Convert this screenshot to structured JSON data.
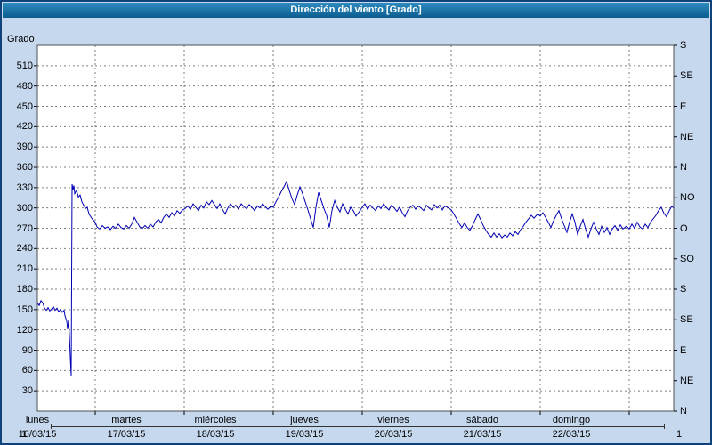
{
  "title": "Dirección del viento [Grado]",
  "y_axis": {
    "unit": "Grado",
    "min": 0,
    "max": 540,
    "step": 30,
    "first_label": 30,
    "last_label": 510
  },
  "right_axis": {
    "labels": [
      "N",
      "NE",
      "E",
      "SE",
      "S",
      "SO",
      "O",
      "NO",
      "N",
      "NE",
      "E",
      "SE",
      "S"
    ],
    "degrees": [
      0,
      45,
      90,
      135,
      180,
      225,
      270,
      315,
      360,
      405,
      450,
      495,
      540
    ]
  },
  "x_axis": {
    "days": [
      {
        "name": "lunes",
        "date": "16/03/15"
      },
      {
        "name": "martes",
        "date": "17/03/15"
      },
      {
        "name": "miércoles",
        "date": "18/03/15"
      },
      {
        "name": "jueves",
        "date": "19/03/15"
      },
      {
        "name": "viernes",
        "date": "20/03/15"
      },
      {
        "name": "sábado",
        "date": "21/03/15"
      },
      {
        "name": "domingo",
        "date": "22/03/15"
      }
    ]
  },
  "footer": {
    "left_page": "1",
    "right_page": "1"
  },
  "colors": {
    "line": "#0000b2",
    "grid": "#7d7d7d",
    "plot_border": "#505050",
    "frame_bg": "#c5d8ee",
    "frame_border": "#10427c",
    "header_from": "#2f8cc0",
    "header_to": "#0c5c8f"
  },
  "chart_data": {
    "type": "line",
    "title": "Dirección del viento [Grado]",
    "ylabel": "Grado",
    "ylim": [
      0,
      540
    ],
    "y_step": 30,
    "grid": "dashed",
    "legend": "none",
    "x_unit": "days since lunes 16/03/15 00:00",
    "x_domain": [
      0.35,
      7.5
    ],
    "day_gridlines": [
      1,
      2,
      3,
      4,
      5,
      6,
      7
    ],
    "series": [
      {
        "name": "Dirección del viento",
        "color": "#0000b2",
        "points": [
          [
            0.35,
            160
          ],
          [
            0.37,
            156
          ],
          [
            0.39,
            163
          ],
          [
            0.41,
            160
          ],
          [
            0.43,
            152
          ],
          [
            0.45,
            149
          ],
          [
            0.47,
            153
          ],
          [
            0.49,
            148
          ],
          [
            0.51,
            151
          ],
          [
            0.53,
            154
          ],
          [
            0.55,
            149
          ],
          [
            0.57,
            152
          ],
          [
            0.59,
            147
          ],
          [
            0.61,
            150
          ],
          [
            0.63,
            146
          ],
          [
            0.65,
            149
          ],
          [
            0.66,
            141
          ],
          [
            0.68,
            133
          ],
          [
            0.69,
            121
          ],
          [
            0.7,
            134
          ],
          [
            0.71,
            112
          ],
          [
            0.72,
            80
          ],
          [
            0.73,
            52
          ],
          [
            0.74,
            335
          ],
          [
            0.75,
            327
          ],
          [
            0.76,
            333
          ],
          [
            0.77,
            321
          ],
          [
            0.79,
            326
          ],
          [
            0.81,
            316
          ],
          [
            0.83,
            319
          ],
          [
            0.85,
            309
          ],
          [
            0.87,
            304
          ],
          [
            0.89,
            299
          ],
          [
            0.91,
            301
          ],
          [
            0.93,
            291
          ],
          [
            0.95,
            287
          ],
          [
            0.97,
            283
          ],
          [
            1.0,
            279
          ],
          [
            1.02,
            272
          ],
          [
            1.05,
            269
          ],
          [
            1.08,
            274
          ],
          [
            1.11,
            270
          ],
          [
            1.14,
            272
          ],
          [
            1.17,
            268
          ],
          [
            1.2,
            273
          ],
          [
            1.23,
            270
          ],
          [
            1.26,
            276
          ],
          [
            1.29,
            271
          ],
          [
            1.32,
            269
          ],
          [
            1.35,
            274
          ],
          [
            1.38,
            270
          ],
          [
            1.41,
            276
          ],
          [
            1.44,
            286
          ],
          [
            1.47,
            279
          ],
          [
            1.5,
            272
          ],
          [
            1.53,
            270
          ],
          [
            1.56,
            274
          ],
          [
            1.59,
            270
          ],
          [
            1.62,
            276
          ],
          [
            1.65,
            272
          ],
          [
            1.68,
            279
          ],
          [
            1.71,
            283
          ],
          [
            1.74,
            278
          ],
          [
            1.77,
            286
          ],
          [
            1.8,
            291
          ],
          [
            1.83,
            286
          ],
          [
            1.86,
            293
          ],
          [
            1.89,
            288
          ],
          [
            1.92,
            296
          ],
          [
            1.95,
            292
          ],
          [
            1.98,
            297
          ],
          [
            2.01,
            299
          ],
          [
            2.04,
            303
          ],
          [
            2.07,
            298
          ],
          [
            2.1,
            306
          ],
          [
            2.13,
            301
          ],
          [
            2.16,
            296
          ],
          [
            2.19,
            304
          ],
          [
            2.22,
            300
          ],
          [
            2.25,
            309
          ],
          [
            2.28,
            305
          ],
          [
            2.31,
            311
          ],
          [
            2.34,
            305
          ],
          [
            2.37,
            299
          ],
          [
            2.4,
            306
          ],
          [
            2.43,
            298
          ],
          [
            2.46,
            291
          ],
          [
            2.49,
            300
          ],
          [
            2.52,
            306
          ],
          [
            2.55,
            301
          ],
          [
            2.58,
            304
          ],
          [
            2.61,
            298
          ],
          [
            2.64,
            306
          ],
          [
            2.67,
            302
          ],
          [
            2.7,
            299
          ],
          [
            2.73,
            305
          ],
          [
            2.76,
            301
          ],
          [
            2.79,
            296
          ],
          [
            2.82,
            303
          ],
          [
            2.85,
            300
          ],
          [
            2.88,
            306
          ],
          [
            2.91,
            302
          ],
          [
            2.94,
            298
          ],
          [
            2.97,
            302
          ],
          [
            3.0,
            301
          ],
          [
            3.03,
            309
          ],
          [
            3.06,
            316
          ],
          [
            3.09,
            324
          ],
          [
            3.12,
            331
          ],
          [
            3.15,
            339
          ],
          [
            3.18,
            326
          ],
          [
            3.21,
            314
          ],
          [
            3.24,
            305
          ],
          [
            3.27,
            319
          ],
          [
            3.3,
            331
          ],
          [
            3.33,
            321
          ],
          [
            3.36,
            309
          ],
          [
            3.39,
            297
          ],
          [
            3.42,
            284
          ],
          [
            3.45,
            271
          ],
          [
            3.48,
            301
          ],
          [
            3.51,
            323
          ],
          [
            3.54,
            311
          ],
          [
            3.57,
            299
          ],
          [
            3.6,
            289
          ],
          [
            3.63,
            271
          ],
          [
            3.66,
            296
          ],
          [
            3.69,
            311
          ],
          [
            3.72,
            301
          ],
          [
            3.75,
            294
          ],
          [
            3.78,
            306
          ],
          [
            3.81,
            298
          ],
          [
            3.84,
            291
          ],
          [
            3.87,
            301
          ],
          [
            3.9,
            296
          ],
          [
            3.93,
            288
          ],
          [
            3.96,
            293
          ],
          [
            4.0,
            301
          ],
          [
            4.03,
            306
          ],
          [
            4.06,
            298
          ],
          [
            4.09,
            304
          ],
          [
            4.12,
            300
          ],
          [
            4.15,
            296
          ],
          [
            4.18,
            303
          ],
          [
            4.21,
            299
          ],
          [
            4.24,
            306
          ],
          [
            4.27,
            301
          ],
          [
            4.3,
            297
          ],
          [
            4.33,
            304
          ],
          [
            4.36,
            300
          ],
          [
            4.39,
            295
          ],
          [
            4.42,
            301
          ],
          [
            4.45,
            293
          ],
          [
            4.48,
            287
          ],
          [
            4.51,
            296
          ],
          [
            4.54,
            301
          ],
          [
            4.57,
            304
          ],
          [
            4.6,
            298
          ],
          [
            4.63,
            303
          ],
          [
            4.66,
            300
          ],
          [
            4.69,
            296
          ],
          [
            4.72,
            304
          ],
          [
            4.75,
            300
          ],
          [
            4.78,
            297
          ],
          [
            4.81,
            305
          ],
          [
            4.84,
            300
          ],
          [
            4.87,
            304
          ],
          [
            4.9,
            297
          ],
          [
            4.93,
            303
          ],
          [
            4.97,
            300
          ],
          [
            5.0,
            297
          ],
          [
            5.03,
            291
          ],
          [
            5.06,
            284
          ],
          [
            5.09,
            277
          ],
          [
            5.12,
            271
          ],
          [
            5.15,
            278
          ],
          [
            5.18,
            271
          ],
          [
            5.21,
            267
          ],
          [
            5.24,
            274
          ],
          [
            5.27,
            283
          ],
          [
            5.3,
            291
          ],
          [
            5.33,
            283
          ],
          [
            5.36,
            274
          ],
          [
            5.39,
            267
          ],
          [
            5.42,
            261
          ],
          [
            5.45,
            257
          ],
          [
            5.48,
            263
          ],
          [
            5.51,
            257
          ],
          [
            5.54,
            262
          ],
          [
            5.57,
            256
          ],
          [
            5.6,
            260
          ],
          [
            5.63,
            257
          ],
          [
            5.66,
            263
          ],
          [
            5.69,
            259
          ],
          [
            5.72,
            265
          ],
          [
            5.75,
            261
          ],
          [
            5.78,
            268
          ],
          [
            5.81,
            273
          ],
          [
            5.84,
            279
          ],
          [
            5.87,
            284
          ],
          [
            5.9,
            289
          ],
          [
            5.93,
            285
          ],
          [
            5.97,
            291
          ],
          [
            6.0,
            288
          ],
          [
            6.03,
            293
          ],
          [
            6.06,
            286
          ],
          [
            6.09,
            279
          ],
          [
            6.12,
            271
          ],
          [
            6.15,
            281
          ],
          [
            6.18,
            289
          ],
          [
            6.21,
            296
          ],
          [
            6.24,
            284
          ],
          [
            6.27,
            274
          ],
          [
            6.3,
            264
          ],
          [
            6.33,
            279
          ],
          [
            6.36,
            291
          ],
          [
            6.39,
            279
          ],
          [
            6.42,
            261
          ],
          [
            6.45,
            273
          ],
          [
            6.48,
            283
          ],
          [
            6.51,
            269
          ],
          [
            6.54,
            257
          ],
          [
            6.57,
            269
          ],
          [
            6.6,
            279
          ],
          [
            6.63,
            269
          ],
          [
            6.66,
            261
          ],
          [
            6.69,
            273
          ],
          [
            6.72,
            264
          ],
          [
            6.75,
            271
          ],
          [
            6.78,
            261
          ],
          [
            6.81,
            269
          ],
          [
            6.84,
            274
          ],
          [
            6.87,
            267
          ],
          [
            6.9,
            275
          ],
          [
            6.93,
            269
          ],
          [
            6.97,
            273
          ],
          [
            7.0,
            269
          ],
          [
            7.03,
            276
          ],
          [
            7.06,
            270
          ],
          [
            7.09,
            279
          ],
          [
            7.12,
            272
          ],
          [
            7.15,
            269
          ],
          [
            7.18,
            276
          ],
          [
            7.21,
            271
          ],
          [
            7.24,
            279
          ],
          [
            7.27,
            284
          ],
          [
            7.3,
            289
          ],
          [
            7.33,
            296
          ],
          [
            7.36,
            301
          ],
          [
            7.39,
            292
          ],
          [
            7.42,
            287
          ],
          [
            7.45,
            296
          ],
          [
            7.48,
            303
          ],
          [
            7.5,
            299
          ]
        ]
      }
    ]
  }
}
